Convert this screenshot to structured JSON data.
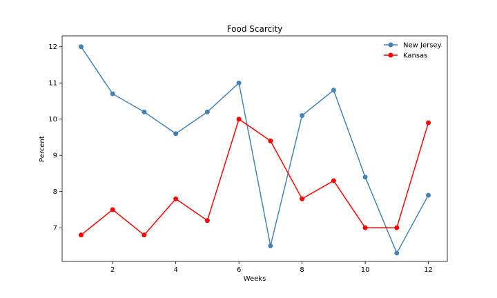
{
  "chart_data": {
    "type": "line",
    "title": "Food Scarcity",
    "xlabel": "Weeks",
    "ylabel": "Percent",
    "x": [
      1,
      2,
      3,
      4,
      5,
      6,
      7,
      8,
      9,
      10,
      11,
      12
    ],
    "xlim": [
      0.4,
      12.6
    ],
    "ylim": [
      6.07,
      12.3
    ],
    "xticks": [
      2,
      4,
      6,
      8,
      10,
      12
    ],
    "yticks": [
      7,
      8,
      9,
      10,
      11,
      12
    ],
    "grid": false,
    "legend_position": "top-right",
    "series": [
      {
        "name": "New Jersey",
        "color": "#4682b4",
        "marker": "circle",
        "values": [
          12.0,
          10.7,
          10.2,
          9.6,
          10.2,
          11.0,
          6.5,
          10.1,
          10.8,
          8.4,
          6.3,
          7.9
        ]
      },
      {
        "name": "Kansas",
        "color": "#ff0000",
        "marker": "circle",
        "values": [
          6.8,
          7.5,
          6.8,
          7.8,
          7.2,
          10.0,
          9.4,
          7.8,
          8.3,
          7.0,
          7.0,
          9.9
        ]
      }
    ]
  }
}
